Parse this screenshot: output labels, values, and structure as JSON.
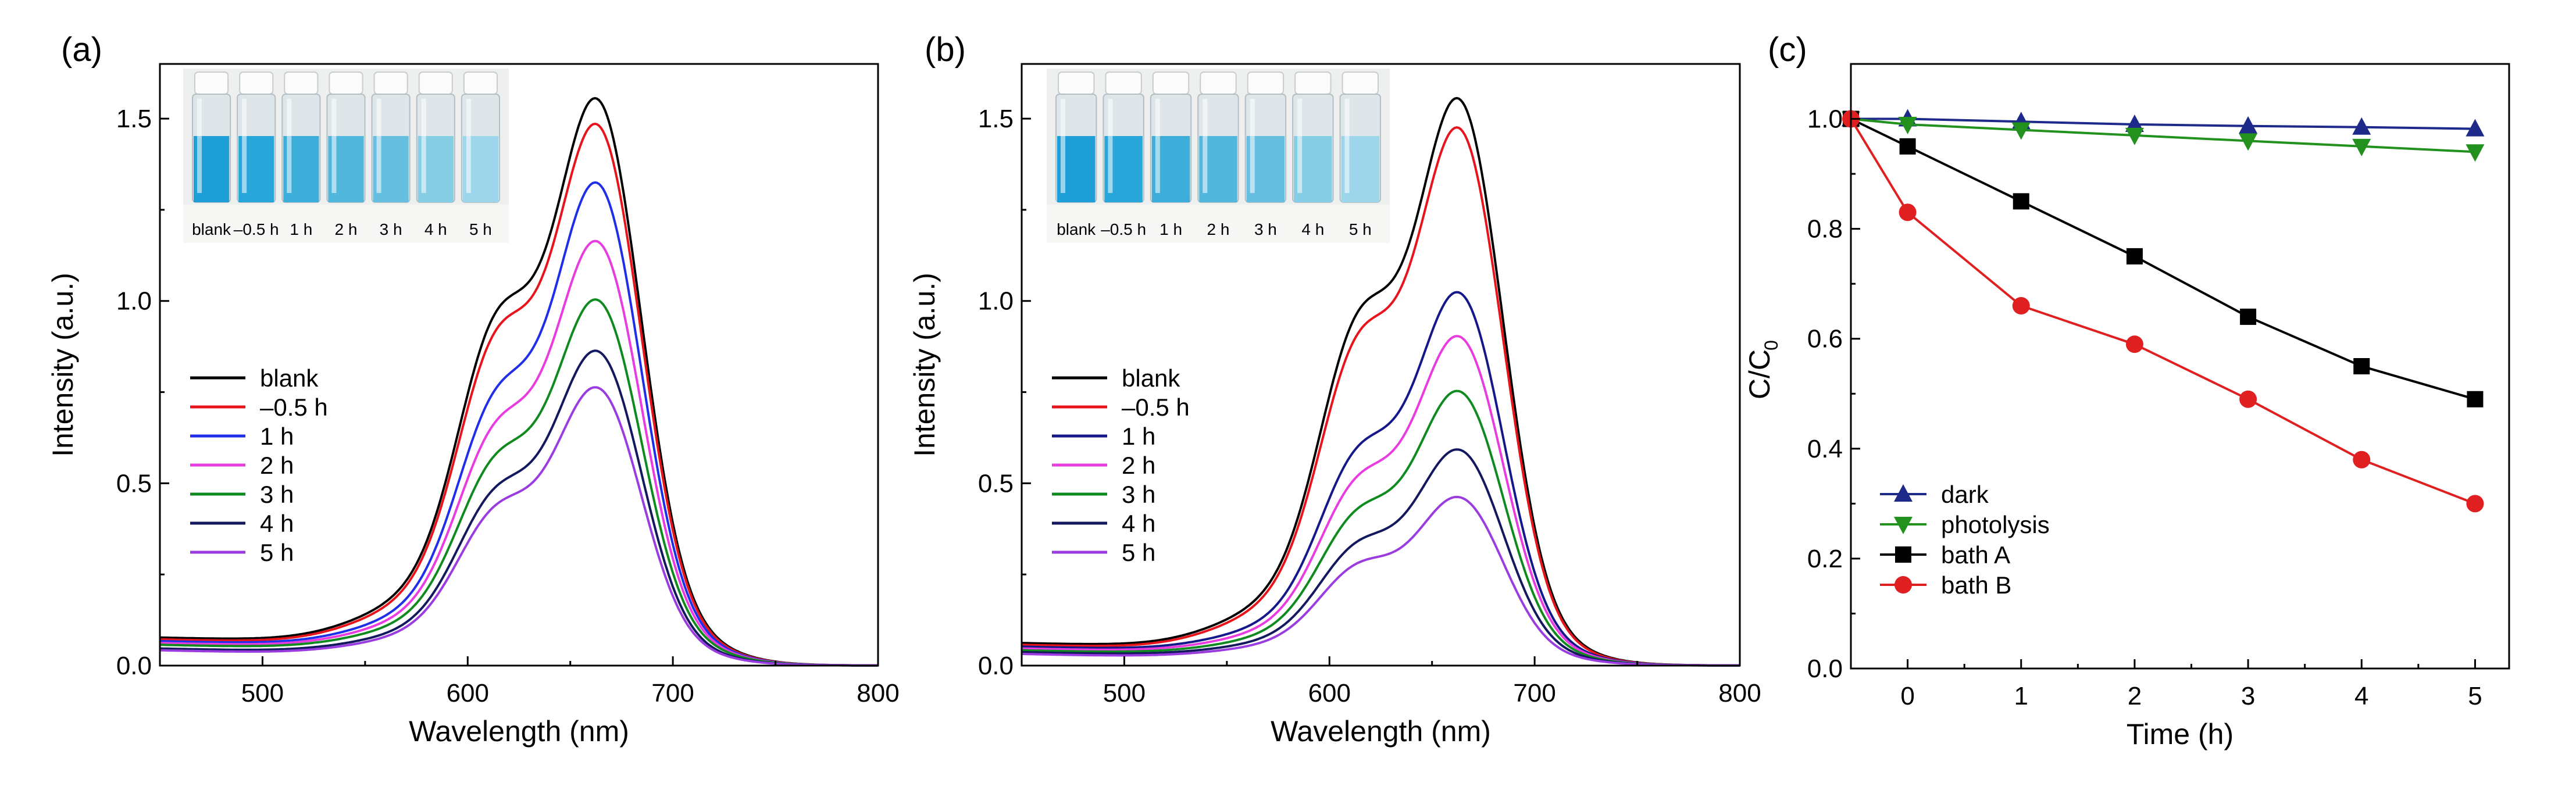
{
  "colors": {
    "black": "#000000",
    "red": "#e8141b",
    "blue": "#1f2ee8",
    "magenta": "#e83ce0",
    "green": "#0f8a1f",
    "navy": "#14185e",
    "purple": "#9a3ce0",
    "dark": "#1e2a8a",
    "photolysis": "#22911e",
    "bathA": "#000000",
    "bathB": "#e02020",
    "cuvette_liquid": [
      "#1e9fd8",
      "#28a6da",
      "#3caed9",
      "#52b7dd",
      "#66bfe0",
      "#86cde6",
      "#9dd6ea"
    ]
  },
  "panel_a": {
    "panel_label": "(a)",
    "inset_labels": [
      "blank",
      "–0.5 h",
      "1 h",
      "2 h",
      "3 h",
      "4 h",
      "5 h"
    ]
  },
  "panel_b": {
    "panel_label": "(b)",
    "inset_labels": [
      "blank",
      "–0.5 h",
      "1 h",
      "2 h",
      "3 h",
      "4 h",
      "5 h"
    ]
  },
  "panel_c": {
    "panel_label": "(c)"
  },
  "chart_data": [
    {
      "id": "a",
      "type": "line",
      "title": "",
      "xlabel": "Wavelength (nm)",
      "ylabel": "Intensity (a.u.)",
      "xlim": [
        450,
        800
      ],
      "ylim": [
        0,
        1.65
      ],
      "xticks": [
        500,
        600,
        700,
        800
      ],
      "yticks": [
        0.0,
        0.5,
        1.0,
        1.5
      ],
      "xtick_labels": [
        "500",
        "600",
        "700",
        "800"
      ],
      "ytick_labels": [
        "0.0",
        "0.5",
        "1.0",
        "1.5"
      ],
      "legend_position": "middle-left",
      "series": [
        {
          "name": "blank",
          "color": "#000000",
          "peak": 1.55,
          "shoulder": 0.97,
          "base": 0.065
        },
        {
          "name": "–0.5 h",
          "color": "#e8141b",
          "peak": 1.48,
          "shoulder": 0.92,
          "base": 0.06
        },
        {
          "name": "1 h",
          "color": "#1f2ee8",
          "peak": 1.32,
          "shoulder": 0.76,
          "base": 0.055
        },
        {
          "name": "2 h",
          "color": "#e83ce0",
          "peak": 1.16,
          "shoulder": 0.67,
          "base": 0.05
        },
        {
          "name": "3 h",
          "color": "#0f8a1f",
          "peak": 1.0,
          "shoulder": 0.58,
          "base": 0.045
        },
        {
          "name": "4 h",
          "color": "#14185e",
          "peak": 0.86,
          "shoulder": 0.49,
          "base": 0.035
        },
        {
          "name": "5 h",
          "color": "#9a3ce0",
          "peak": 0.76,
          "shoulder": 0.44,
          "base": 0.03
        }
      ]
    },
    {
      "id": "b",
      "type": "line",
      "title": "",
      "xlabel": "Wavelength (nm)",
      "ylabel": "Intensity (a.u.)",
      "xlim": [
        450,
        800
      ],
      "ylim": [
        0,
        1.65
      ],
      "xticks": [
        500,
        600,
        700,
        800
      ],
      "yticks": [
        0.0,
        0.5,
        1.0,
        1.5
      ],
      "xtick_labels": [
        "500",
        "600",
        "700",
        "800"
      ],
      "ytick_labels": [
        "0.0",
        "0.5",
        "1.0",
        "1.5"
      ],
      "legend_position": "middle-left",
      "series": [
        {
          "name": "blank",
          "color": "#000000",
          "peak": 1.55,
          "shoulder": 0.97,
          "base": 0.05
        },
        {
          "name": "–0.5 h",
          "color": "#e8141b",
          "peak": 1.47,
          "shoulder": 0.91,
          "base": 0.045
        },
        {
          "name": "1 h",
          "color": "#14188a",
          "peak": 1.02,
          "shoulder": 0.6,
          "base": 0.04
        },
        {
          "name": "2 h",
          "color": "#e83ce0",
          "peak": 0.9,
          "shoulder": 0.52,
          "base": 0.035
        },
        {
          "name": "3 h",
          "color": "#0f8a1f",
          "peak": 0.75,
          "shoulder": 0.43,
          "base": 0.03
        },
        {
          "name": "4 h",
          "color": "#14185e",
          "peak": 0.59,
          "shoulder": 0.34,
          "base": 0.025
        },
        {
          "name": "5 h",
          "color": "#9a3ce0",
          "peak": 0.46,
          "shoulder": 0.28,
          "base": 0.02
        }
      ]
    },
    {
      "id": "c",
      "type": "line",
      "title": "",
      "xlabel": "Time (h)",
      "ylabel": "C/C",
      "ylabel_sub": "0",
      "xlim": [
        -0.5,
        5.3
      ],
      "ylim": [
        0.0,
        1.1
      ],
      "xticks": [
        0,
        1,
        2,
        3,
        4,
        5
      ],
      "yticks": [
        0.0,
        0.2,
        0.4,
        0.6,
        0.8,
        1.0
      ],
      "xtick_labels": [
        "0",
        "1",
        "2",
        "3",
        "4",
        "5"
      ],
      "ytick_labels": [
        "0.0",
        "0.2",
        "0.4",
        "0.6",
        "0.8",
        "1.0"
      ],
      "legend_position": "bottom-left",
      "x": [
        -0.5,
        0,
        1,
        2,
        3,
        4,
        5
      ],
      "series": [
        {
          "name": "dark",
          "color": "#1e2a8a",
          "marker": "triangle-up",
          "values": [
            1.0,
            1.0,
            0.995,
            0.99,
            0.987,
            0.985,
            0.982
          ]
        },
        {
          "name": "photolysis",
          "color": "#22911e",
          "marker": "triangle-down",
          "values": [
            1.0,
            0.99,
            0.98,
            0.97,
            0.96,
            0.95,
            0.94
          ]
        },
        {
          "name": "bath A",
          "color": "#000000",
          "marker": "square",
          "values": [
            1.0,
            0.95,
            0.85,
            0.75,
            0.64,
            0.55,
            0.49
          ]
        },
        {
          "name": "bath B",
          "color": "#e02020",
          "marker": "circle",
          "values": [
            1.0,
            0.83,
            0.66,
            0.59,
            0.49,
            0.38,
            0.3
          ]
        }
      ]
    }
  ]
}
